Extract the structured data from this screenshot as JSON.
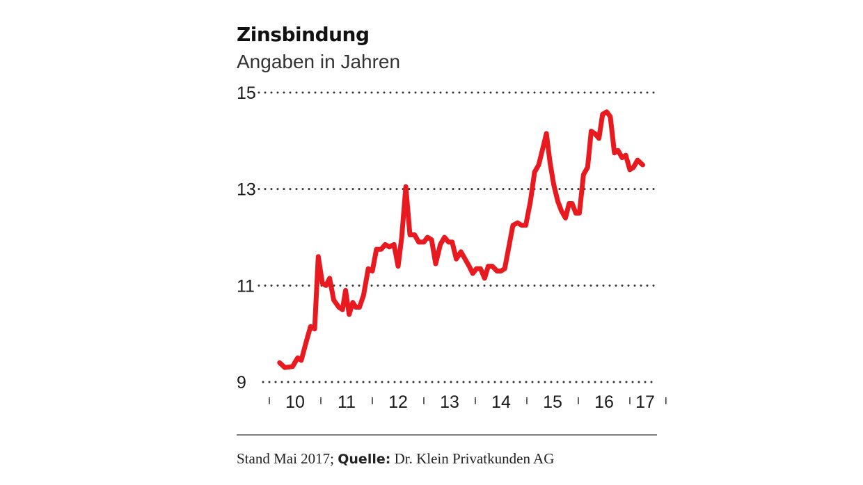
{
  "chart_data": {
    "type": "line",
    "title": "Zinsbindung",
    "subtitle": "Angaben in Jahren",
    "xlabel": "",
    "ylabel": "",
    "ylim": [
      9,
      15
    ],
    "yticks": [
      9,
      11,
      13,
      15
    ],
    "xlim": [
      2009.0,
      2017.45
    ],
    "x_tick_labels": [
      "10",
      "11",
      "12",
      "13",
      "14",
      "15",
      "16",
      "17"
    ],
    "x_tick_years": [
      2010,
      2011,
      2012,
      2013,
      2014,
      2015,
      2016,
      2017
    ],
    "grid": true,
    "legend": "none",
    "series": [
      {
        "color": "#e8191f",
        "points": [
          [
            2009.2,
            9.4
          ],
          [
            2009.3,
            9.3
          ],
          [
            2009.45,
            9.32
          ],
          [
            2009.55,
            9.5
          ],
          [
            2009.62,
            9.45
          ],
          [
            2009.72,
            9.85
          ],
          [
            2009.8,
            10.15
          ],
          [
            2009.88,
            10.1
          ],
          [
            2009.95,
            11.6
          ],
          [
            2010.03,
            11.05
          ],
          [
            2010.1,
            11.0
          ],
          [
            2010.17,
            11.15
          ],
          [
            2010.25,
            10.7
          ],
          [
            2010.35,
            10.55
          ],
          [
            2010.42,
            10.5
          ],
          [
            2010.48,
            10.9
          ],
          [
            2010.55,
            10.4
          ],
          [
            2010.62,
            10.65
          ],
          [
            2010.68,
            10.55
          ],
          [
            2010.75,
            10.55
          ],
          [
            2010.83,
            10.8
          ],
          [
            2010.92,
            11.35
          ],
          [
            2011.0,
            11.3
          ],
          [
            2011.08,
            11.75
          ],
          [
            2011.17,
            11.75
          ],
          [
            2011.25,
            11.85
          ],
          [
            2011.33,
            11.8
          ],
          [
            2011.42,
            11.85
          ],
          [
            2011.5,
            11.4
          ],
          [
            2011.57,
            12.0
          ],
          [
            2011.65,
            13.05
          ],
          [
            2011.73,
            12.05
          ],
          [
            2011.82,
            12.05
          ],
          [
            2011.9,
            11.9
          ],
          [
            2012.0,
            11.9
          ],
          [
            2012.07,
            12.0
          ],
          [
            2012.15,
            11.95
          ],
          [
            2012.23,
            11.45
          ],
          [
            2012.32,
            11.85
          ],
          [
            2012.4,
            12.0
          ],
          [
            2012.48,
            11.9
          ],
          [
            2012.55,
            11.9
          ],
          [
            2012.63,
            11.55
          ],
          [
            2012.72,
            11.7
          ],
          [
            2012.8,
            11.55
          ],
          [
            2012.88,
            11.4
          ],
          [
            2012.95,
            11.25
          ],
          [
            2013.02,
            11.35
          ],
          [
            2013.1,
            11.35
          ],
          [
            2013.18,
            11.15
          ],
          [
            2013.25,
            11.4
          ],
          [
            2013.33,
            11.4
          ],
          [
            2013.42,
            11.3
          ],
          [
            2013.5,
            11.3
          ],
          [
            2013.57,
            11.35
          ],
          [
            2013.65,
            11.8
          ],
          [
            2013.73,
            12.25
          ],
          [
            2013.82,
            12.3
          ],
          [
            2013.9,
            12.25
          ],
          [
            2013.98,
            12.25
          ],
          [
            2014.07,
            12.75
          ],
          [
            2014.15,
            13.35
          ],
          [
            2014.23,
            13.5
          ],
          [
            2014.3,
            13.8
          ],
          [
            2014.38,
            14.15
          ],
          [
            2014.45,
            13.55
          ],
          [
            2014.52,
            13.1
          ],
          [
            2014.6,
            12.75
          ],
          [
            2014.67,
            12.55
          ],
          [
            2014.75,
            12.4
          ],
          [
            2014.82,
            12.7
          ],
          [
            2014.88,
            12.7
          ],
          [
            2014.95,
            12.5
          ],
          [
            2015.02,
            12.5
          ],
          [
            2015.1,
            13.3
          ],
          [
            2015.18,
            13.45
          ],
          [
            2015.25,
            14.2
          ],
          [
            2015.32,
            14.15
          ],
          [
            2015.4,
            14.05
          ],
          [
            2015.47,
            14.55
          ],
          [
            2015.55,
            14.6
          ],
          [
            2015.62,
            14.5
          ],
          [
            2015.7,
            13.75
          ],
          [
            2015.77,
            13.8
          ],
          [
            2015.85,
            13.65
          ],
          [
            2015.92,
            13.7
          ],
          [
            2016.0,
            13.4
          ],
          [
            2016.07,
            13.45
          ],
          [
            2016.15,
            13.6
          ],
          [
            2016.25,
            13.5
          ]
        ]
      }
    ]
  },
  "footer": {
    "text_before": "Stand Mai 2017; ",
    "source_label": "Quelle:",
    "source_name": " Dr. Klein Privatkunden AG"
  }
}
